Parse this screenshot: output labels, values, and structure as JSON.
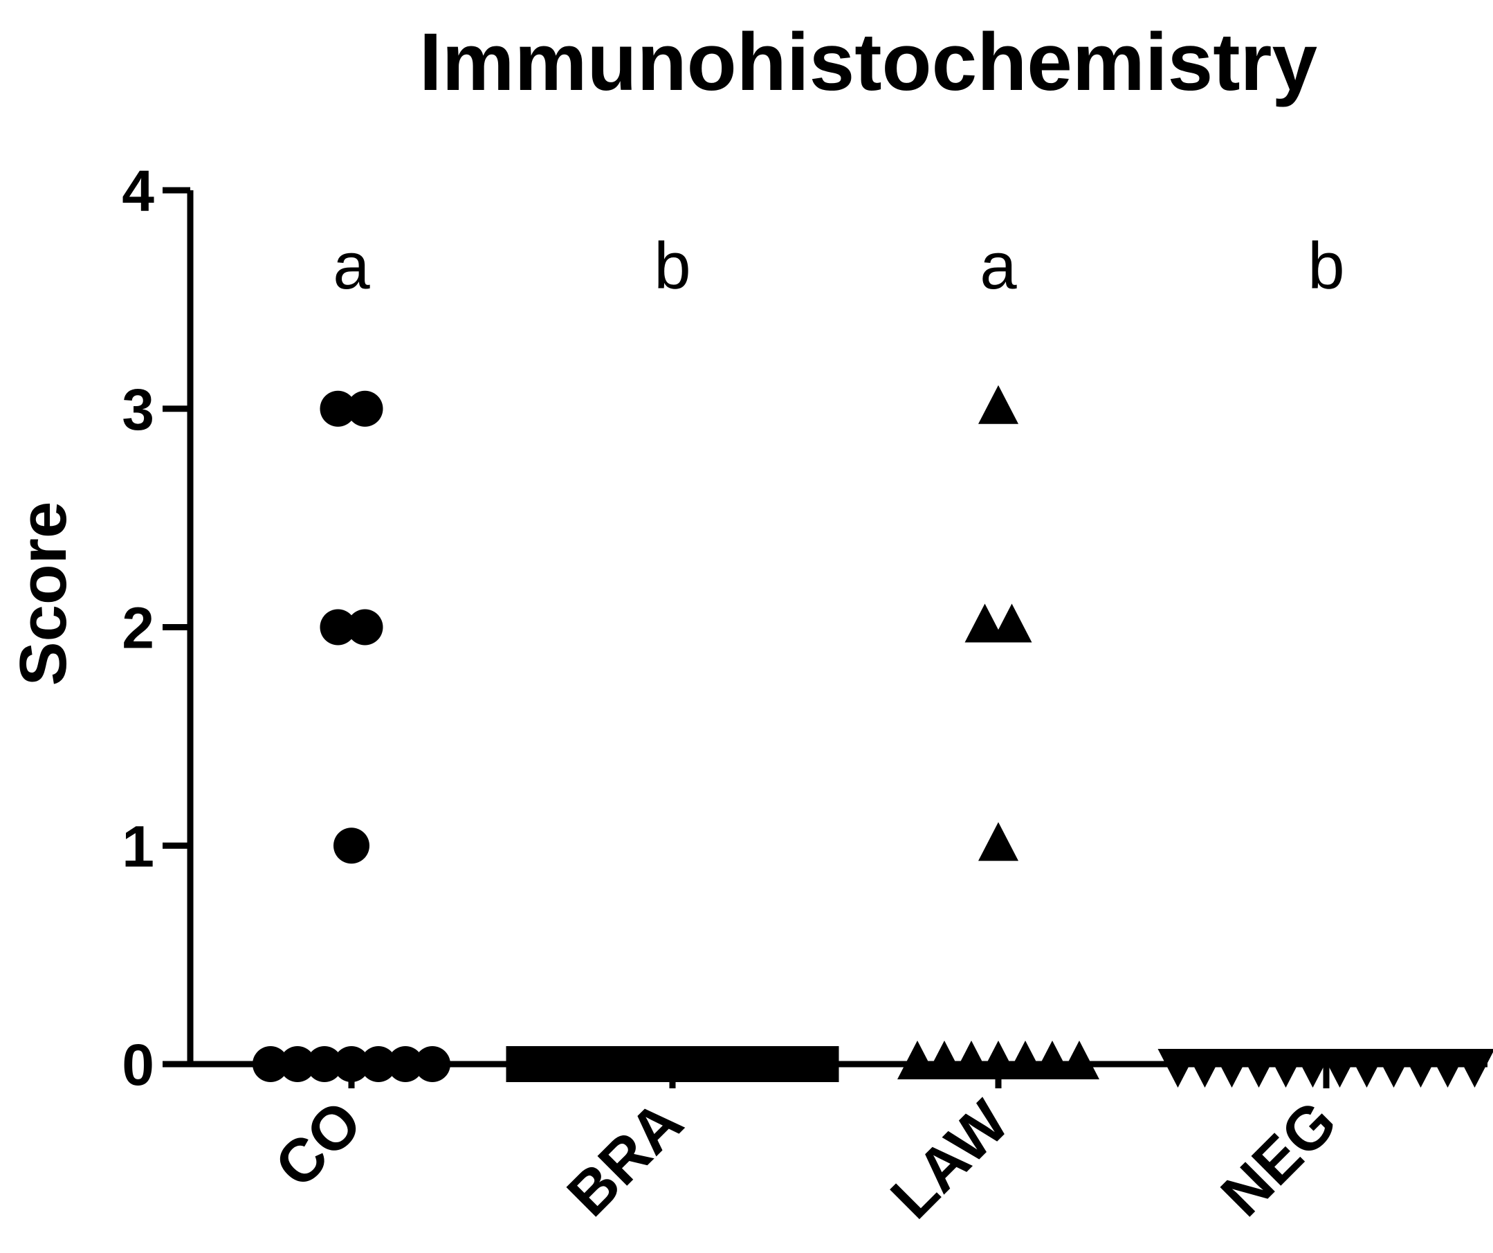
{
  "chart_data": {
    "type": "scatter",
    "title": "Immunohistochemistry",
    "ylabel": "Score",
    "xlabel": "",
    "ylim": [
      0,
      4
    ],
    "yticks": [
      "0",
      "1",
      "2",
      "3",
      "4"
    ],
    "grid": false,
    "categories": [
      "CO",
      "BRA",
      "LAW",
      "NEG"
    ],
    "group_letters": [
      "a",
      "b",
      "a",
      "b"
    ],
    "series": [
      {
        "category": "CO",
        "marker": "circle",
        "values": [
          3,
          3,
          2,
          2,
          1,
          0,
          0,
          0,
          0,
          0,
          0,
          0
        ]
      },
      {
        "category": "BRA",
        "marker": "square",
        "values": [
          0,
          0,
          0,
          0,
          0,
          0,
          0,
          0,
          0,
          0,
          0,
          0
        ]
      },
      {
        "category": "LAW",
        "marker": "triangle-up",
        "values": [
          3,
          2,
          2,
          1,
          0,
          0,
          0,
          0,
          0,
          0,
          0
        ]
      },
      {
        "category": "NEG",
        "marker": "triangle-down",
        "values": [
          0,
          0,
          0,
          0,
          0,
          0,
          0,
          0,
          0,
          0,
          0,
          0
        ]
      }
    ],
    "color": "#000000"
  }
}
